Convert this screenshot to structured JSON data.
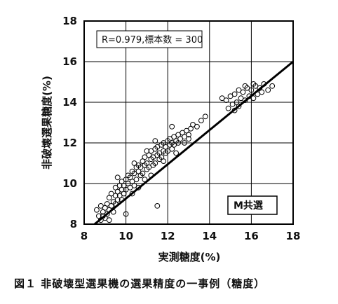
{
  "caption": "図１ 非破壊型選果機の選果精度の一事例（糖度）",
  "chart_data": {
    "type": "scatter",
    "xlabel": "実測糖度(%)",
    "ylabel": "非破壊選果糖度(%)",
    "xlim": [
      8,
      18
    ],
    "ylim": [
      8,
      18
    ],
    "xticks": [
      "8",
      "10",
      "12",
      "14",
      "16",
      "18"
    ],
    "yticks": [
      "8",
      "10",
      "12",
      "14",
      "16",
      "18"
    ],
    "grid": true,
    "stats_label": "R=0.979,標本数 = 300",
    "group_label": "M共選",
    "fit_line": {
      "x": [
        8.5,
        18
      ],
      "y": [
        8.0,
        16.0
      ]
    },
    "series": [
      {
        "marker": "open-circle",
        "points": [
          [
            8.6,
            8.7
          ],
          [
            8.7,
            8.4
          ],
          [
            8.8,
            8.2
          ],
          [
            8.8,
            8.9
          ],
          [
            8.9,
            8.6
          ],
          [
            9.0,
            8.3
          ],
          [
            9.0,
            8.8
          ],
          [
            9.1,
            9.0
          ],
          [
            9.1,
            8.5
          ],
          [
            9.2,
            8.7
          ],
          [
            9.2,
            9.3
          ],
          [
            9.3,
            8.9
          ],
          [
            9.3,
            9.5
          ],
          [
            9.4,
            9.1
          ],
          [
            9.4,
            8.6
          ],
          [
            9.5,
            9.4
          ],
          [
            9.5,
            9.8
          ],
          [
            9.6,
            9.2
          ],
          [
            9.6,
            9.6
          ],
          [
            9.7,
            9.9
          ],
          [
            9.7,
            9.4
          ],
          [
            9.8,
            9.7
          ],
          [
            9.8,
            10.1
          ],
          [
            9.9,
            9.5
          ],
          [
            9.9,
            9.9
          ],
          [
            10.0,
            10.2
          ],
          [
            10.0,
            9.7
          ],
          [
            10.1,
            10.0
          ],
          [
            10.1,
            10.4
          ],
          [
            10.2,
            9.8
          ],
          [
            10.2,
            10.3
          ],
          [
            10.3,
            10.6
          ],
          [
            10.3,
            10.1
          ],
          [
            10.4,
            9.9
          ],
          [
            10.4,
            10.5
          ],
          [
            10.5,
            10.8
          ],
          [
            10.5,
            10.2
          ],
          [
            10.6,
            10.6
          ],
          [
            10.6,
            10.9
          ],
          [
            10.7,
            10.4
          ],
          [
            10.7,
            10.8
          ],
          [
            10.8,
            11.1
          ],
          [
            10.8,
            10.5
          ],
          [
            10.9,
            10.9
          ],
          [
            10.9,
            11.3
          ],
          [
            11.0,
            10.7
          ],
          [
            11.0,
            11.0
          ],
          [
            11.1,
            11.4
          ],
          [
            11.1,
            10.8
          ],
          [
            11.2,
            11.2
          ],
          [
            11.2,
            11.6
          ],
          [
            11.3,
            10.9
          ],
          [
            11.3,
            11.3
          ],
          [
            11.4,
            11.7
          ],
          [
            11.4,
            11.0
          ],
          [
            11.5,
            11.4
          ],
          [
            11.5,
            11.8
          ],
          [
            11.6,
            11.2
          ],
          [
            11.6,
            11.5
          ],
          [
            11.7,
            11.9
          ],
          [
            11.7,
            11.3
          ],
          [
            11.8,
            11.6
          ],
          [
            11.8,
            12.0
          ],
          [
            11.9,
            11.5
          ],
          [
            11.9,
            11.8
          ],
          [
            12.0,
            12.1
          ],
          [
            12.0,
            11.6
          ],
          [
            12.1,
            11.9
          ],
          [
            12.1,
            12.2
          ],
          [
            12.2,
            11.7
          ],
          [
            12.2,
            12.0
          ],
          [
            12.3,
            12.3
          ],
          [
            12.3,
            11.9
          ],
          [
            12.4,
            12.1
          ],
          [
            12.5,
            12.4
          ],
          [
            12.5,
            12.0
          ],
          [
            12.6,
            12.2
          ],
          [
            12.7,
            12.5
          ],
          [
            12.8,
            12.3
          ],
          [
            12.9,
            12.6
          ],
          [
            13.0,
            12.4
          ],
          [
            13.1,
            12.7
          ],
          [
            13.2,
            12.9
          ],
          [
            13.4,
            12.8
          ],
          [
            13.6,
            13.1
          ],
          [
            13.8,
            13.3
          ],
          [
            14.6,
            14.2
          ],
          [
            14.8,
            14.1
          ],
          [
            15.0,
            14.3
          ],
          [
            15.1,
            13.9
          ],
          [
            15.2,
            14.4
          ],
          [
            15.3,
            14.0
          ],
          [
            15.4,
            14.6
          ],
          [
            15.5,
            14.2
          ],
          [
            15.6,
            14.5
          ],
          [
            15.7,
            14.1
          ],
          [
            15.8,
            14.7
          ],
          [
            15.9,
            14.3
          ],
          [
            16.0,
            14.6
          ],
          [
            16.1,
            14.2
          ],
          [
            16.2,
            14.8
          ],
          [
            16.3,
            14.4
          ],
          [
            16.4,
            14.7
          ],
          [
            16.5,
            14.5
          ],
          [
            16.6,
            14.9
          ],
          [
            16.8,
            14.6
          ],
          [
            17.0,
            14.8
          ],
          [
            15.2,
            13.6
          ],
          [
            15.4,
            13.8
          ],
          [
            14.9,
            13.7
          ],
          [
            16.1,
            14.9
          ],
          [
            15.7,
            14.8
          ],
          [
            11.5,
            8.9
          ],
          [
            10.0,
            8.5
          ],
          [
            9.2,
            8.2
          ],
          [
            12.8,
            12.0
          ],
          [
            13.0,
            12.2
          ],
          [
            10.6,
            9.8
          ],
          [
            11.2,
            10.4
          ],
          [
            9.8,
            9.2
          ],
          [
            10.3,
            9.5
          ],
          [
            11.8,
            11.1
          ],
          [
            12.4,
            11.5
          ],
          [
            10.9,
            10.2
          ],
          [
            9.5,
            9.0
          ],
          [
            8.9,
            8.4
          ],
          [
            11.0,
            11.6
          ],
          [
            10.4,
            11.0
          ],
          [
            9.6,
            10.3
          ],
          [
            12.2,
            12.8
          ],
          [
            11.4,
            12.1
          ]
        ]
      }
    ]
  }
}
